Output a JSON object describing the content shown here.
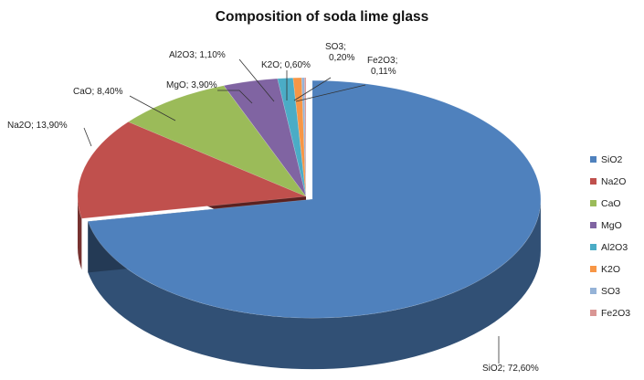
{
  "chart_data": {
    "type": "pie",
    "style": "3d-exploded",
    "title": "Composition of soda lime glass",
    "legend_position": "right",
    "slices": [
      {
        "name": "SiO2",
        "value": 72.6,
        "label": "SiO2; 72,60%",
        "color": "#4F81BD"
      },
      {
        "name": "Na2O",
        "value": 13.9,
        "label": "Na2O; 13,90%",
        "color": "#C0504D"
      },
      {
        "name": "CaO",
        "value": 8.4,
        "label": "CaO; 8,40%",
        "color": "#9BBB59"
      },
      {
        "name": "MgO",
        "value": 3.9,
        "label": "MgO; 3,90%",
        "color": "#8064A2"
      },
      {
        "name": "Al2O3",
        "value": 1.1,
        "label": "Al2O3; 1,10%",
        "color": "#4BACC6"
      },
      {
        "name": "K2O",
        "value": 0.6,
        "label": "K2O; 0,60%",
        "color": "#F79646"
      },
      {
        "name": "SO3",
        "value": 0.2,
        "label": "SO3; 0,20%",
        "color": "#95B3D7"
      },
      {
        "name": "Fe2O3",
        "value": 0.11,
        "label": "Fe2O3; 0,11%",
        "color": "#D99694"
      }
    ]
  }
}
